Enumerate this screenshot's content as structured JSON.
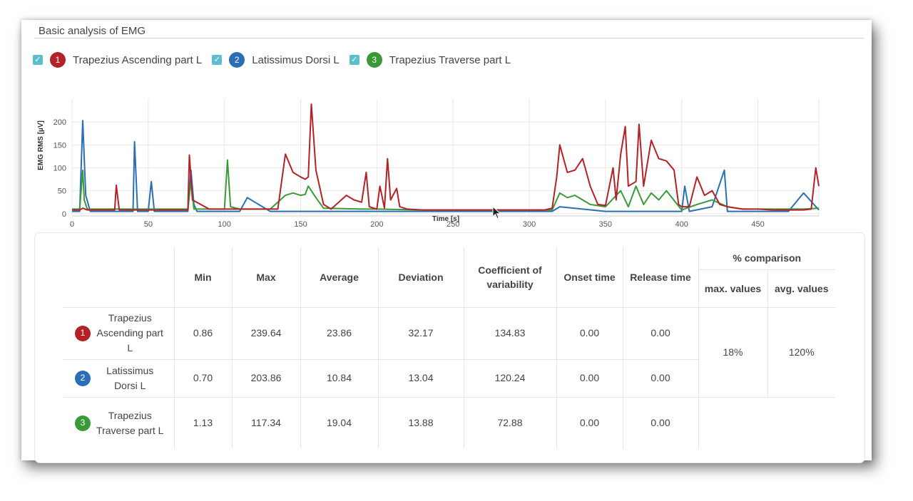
{
  "panel": {
    "title": "Basic analysis of EMG"
  },
  "legend": [
    {
      "number": "1",
      "label": "Trapezius Ascending part L",
      "color": "#b22226",
      "checked": true
    },
    {
      "number": "2",
      "label": "Latissimus Dorsi L",
      "color": "#2a6fb5",
      "checked": true
    },
    {
      "number": "3",
      "label": "Trapezius Traverse part L",
      "color": "#3a9a3a",
      "checked": true
    }
  ],
  "chart_data": {
    "type": "line",
    "xlabel": "Time [s]",
    "ylabel": "EMG RMS [µV]",
    "xlim": [
      0,
      490
    ],
    "ylim": [
      -5,
      250
    ],
    "xticks": [
      0,
      50,
      100,
      150,
      200,
      250,
      300,
      350,
      400,
      450
    ],
    "yticks": [
      0,
      50,
      100,
      150,
      200
    ],
    "grid": true,
    "series": [
      {
        "name": "Trapezius Ascending part L",
        "color": "#b22226",
        "x": [
          0,
          5,
          7,
          10,
          28,
          29,
          31,
          40,
          60,
          76,
          77,
          79,
          90,
          110,
          130,
          135,
          140,
          145,
          150,
          153,
          155,
          157,
          160,
          165,
          170,
          180,
          185,
          190,
          193,
          195,
          200,
          202,
          205,
          207,
          209,
          213,
          215,
          220,
          230,
          250,
          270,
          280,
          300,
          310,
          315,
          318,
          320,
          325,
          330,
          335,
          340,
          345,
          350,
          355,
          357,
          360,
          363,
          365,
          370,
          372,
          375,
          380,
          385,
          390,
          395,
          398,
          400,
          405,
          410,
          415,
          420,
          425,
          430,
          440,
          450,
          460,
          470,
          480,
          485,
          488,
          490
        ],
        "values": [
          8,
          8,
          12,
          8,
          8,
          62,
          8,
          8,
          8,
          8,
          128,
          30,
          10,
          10,
          10,
          10,
          130,
          90,
          80,
          75,
          80,
          239,
          95,
          20,
          10,
          40,
          30,
          25,
          90,
          15,
          10,
          60,
          12,
          120,
          30,
          55,
          15,
          10,
          8,
          8,
          8,
          8,
          8,
          8,
          12,
          80,
          150,
          90,
          95,
          120,
          60,
          20,
          18,
          100,
          30,
          130,
          190,
          60,
          70,
          195,
          60,
          160,
          120,
          115,
          95,
          20,
          15,
          15,
          80,
          40,
          50,
          20,
          15,
          10,
          10,
          8,
          8,
          8,
          10,
          100,
          60
        ]
      },
      {
        "name": "Latissimus Dorsi L",
        "color": "#2a6fb5",
        "x": [
          0,
          5,
          7,
          9,
          12,
          40,
          41,
          43,
          50,
          52,
          54,
          76,
          78,
          80,
          82,
          110,
          115,
          130,
          150,
          200,
          250,
          300,
          315,
          320,
          350,
          400,
          402,
          405,
          420,
          428,
          430,
          440,
          470,
          480,
          490
        ],
        "values": [
          5,
          5,
          203,
          40,
          5,
          5,
          157,
          5,
          5,
          70,
          5,
          5,
          95,
          20,
          5,
          5,
          35,
          5,
          5,
          5,
          5,
          5,
          5,
          15,
          5,
          5,
          60,
          5,
          15,
          95,
          5,
          5,
          5,
          45,
          8
        ]
      },
      {
        "name": "Trapezius Traverse part L",
        "color": "#3a9a3a",
        "x": [
          0,
          5,
          7,
          8,
          10,
          20,
          50,
          76,
          78,
          80,
          100,
          102,
          104,
          110,
          130,
          140,
          145,
          150,
          153,
          155,
          160,
          165,
          190,
          200,
          230,
          250,
          300,
          315,
          320,
          325,
          330,
          340,
          350,
          360,
          365,
          370,
          375,
          380,
          385,
          390,
          400,
          410,
          420,
          430,
          440,
          460,
          480,
          490
        ],
        "values": [
          10,
          10,
          95,
          30,
          10,
          10,
          10,
          10,
          70,
          10,
          10,
          117,
          15,
          10,
          10,
          40,
          45,
          40,
          42,
          60,
          35,
          12,
          10,
          10,
          8,
          8,
          8,
          8,
          45,
          35,
          40,
          20,
          15,
          50,
          15,
          60,
          20,
          45,
          30,
          50,
          8,
          20,
          30,
          15,
          10,
          10,
          10,
          12
        ]
      }
    ]
  },
  "table": {
    "headers": {
      "min": "Min",
      "max": "Max",
      "average": "Average",
      "deviation": "Deviation",
      "cov": "Coefficient of variability",
      "onset": "Onset time",
      "release": "Release time",
      "comparison": "% comparison",
      "max_values": "max. values",
      "avg_values": "avg. values"
    },
    "rows": [
      {
        "number": "1",
        "color": "#b22226",
        "name": "Trapezius Ascending part L",
        "min": "0.86",
        "max": "239.64",
        "average": "23.86",
        "deviation": "32.17",
        "cov": "134.83",
        "onset": "0.00",
        "release": "0.00"
      },
      {
        "number": "2",
        "color": "#2a6fb5",
        "name": "Latissimus Dorsi L",
        "min": "0.70",
        "max": "203.86",
        "average": "10.84",
        "deviation": "13.04",
        "cov": "120.24",
        "onset": "0.00",
        "release": "0.00"
      },
      {
        "number": "3",
        "color": "#3a9a3a",
        "name": "Trapezius Traverse part L",
        "min": "1.13",
        "max": "117.34",
        "average": "19.04",
        "deviation": "13.88",
        "cov": "72.88",
        "onset": "0.00",
        "release": "0.00"
      }
    ],
    "comparison": {
      "max_pct": "18%",
      "avg_pct": "120%"
    }
  },
  "icons": {
    "checkbox": "check-icon",
    "cursor": "mouse-pointer-icon"
  }
}
